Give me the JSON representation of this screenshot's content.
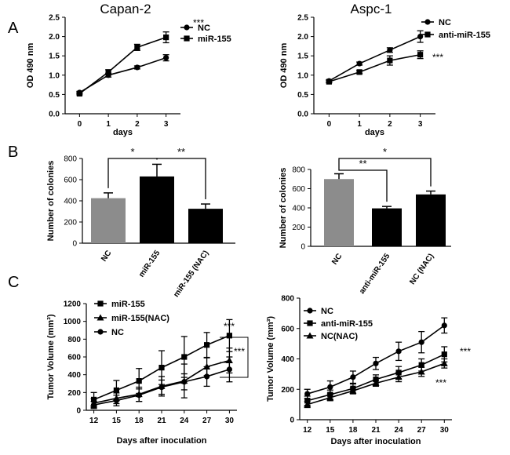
{
  "panel_labels": [
    "A",
    "B",
    "C"
  ],
  "chart_data": [
    {
      "id": "capan2_growth",
      "type": "line",
      "title": "Capan-2",
      "xlabel": "days",
      "ylabel": "OD 490 nm",
      "x": [
        0,
        1,
        2,
        3
      ],
      "xlim": [
        -0.5,
        3.5
      ],
      "ylim": [
        0,
        2.5
      ],
      "xticks": [
        "0",
        "1",
        "2",
        "3"
      ],
      "yticks": [
        "0.0",
        "0.5",
        "1.0",
        "1.5",
        "2.0",
        "2.5"
      ],
      "series": [
        {
          "name": "NC",
          "marker": "circle",
          "values": [
            0.55,
            1.0,
            1.2,
            1.45
          ],
          "errors": [
            0.03,
            0.05,
            0.04,
            0.08
          ]
        },
        {
          "name": "miR-155",
          "marker": "square",
          "values": [
            0.52,
            1.08,
            1.72,
            1.98
          ],
          "errors": [
            0.03,
            0.06,
            0.08,
            0.14
          ]
        }
      ],
      "annotations": [
        {
          "text": "***"
        }
      ],
      "legend": "top-right"
    },
    {
      "id": "aspc1_growth",
      "type": "line",
      "title": "Aspc-1",
      "xlabel": "days",
      "ylabel": "OD 490 nm",
      "x": [
        0,
        1,
        2,
        3
      ],
      "xlim": [
        -0.5,
        3.5
      ],
      "ylim": [
        0,
        2.5
      ],
      "xticks": [
        "0",
        "1",
        "2",
        "3"
      ],
      "yticks": [
        "0.0",
        "0.5",
        "1.0",
        "1.5",
        "2.0",
        "2.5"
      ],
      "series": [
        {
          "name": "NC",
          "marker": "circle",
          "values": [
            0.85,
            1.3,
            1.65,
            2.0
          ],
          "errors": [
            0.03,
            0.04,
            0.06,
            0.15
          ]
        },
        {
          "name": "anti-miR-155",
          "marker": "square",
          "values": [
            0.83,
            1.08,
            1.38,
            1.53
          ],
          "errors": [
            0.03,
            0.04,
            0.12,
            0.1
          ]
        }
      ],
      "annotations": [
        {
          "text": "***"
        }
      ],
      "legend": "top-right"
    },
    {
      "id": "capan2_colonies",
      "type": "bar",
      "ylabel": "Number of colonies",
      "categories": [
        "NC",
        "miR-155",
        "miR-155 (NAC)"
      ],
      "values": [
        425,
        630,
        325
      ],
      "errors": [
        50,
        115,
        45
      ],
      "colors": [
        "#8c8c8c",
        "#000000",
        "#000000"
      ],
      "ylim": [
        0,
        800
      ],
      "yticks": [
        "0",
        "200",
        "400",
        "600",
        "800"
      ],
      "significance": [
        {
          "from": 0,
          "to": 1,
          "text": "*"
        },
        {
          "from": 1,
          "to": 2,
          "text": "**"
        }
      ]
    },
    {
      "id": "aspc1_colonies",
      "type": "bar",
      "ylabel": "Number of colonies",
      "categories": [
        "NC",
        "anti-miR-155",
        "NC (NAC)"
      ],
      "values": [
        700,
        395,
        540
      ],
      "errors": [
        55,
        20,
        35
      ],
      "colors": [
        "#8c8c8c",
        "#000000",
        "#000000"
      ],
      "ylim": [
        0,
        800
      ],
      "yticks": [
        "0",
        "200",
        "400",
        "600",
        "800"
      ],
      "significance": [
        {
          "from": 0,
          "to": 1,
          "text": "**"
        },
        {
          "from": 0,
          "to": 2,
          "text": "*"
        }
      ]
    },
    {
      "id": "capan2_tumor",
      "type": "line",
      "xlabel": "Days after inoculation",
      "ylabel": "Tumor Volume (mm³)",
      "x": [
        12,
        15,
        18,
        21,
        24,
        27,
        30
      ],
      "xlim": [
        11,
        31
      ],
      "ylim": [
        0,
        1200
      ],
      "xticks": [
        "12",
        "15",
        "18",
        "21",
        "24",
        "27",
        "30"
      ],
      "yticks": [
        "0",
        "200",
        "400",
        "600",
        "800",
        "1000",
        "1200"
      ],
      "series": [
        {
          "name": "miR-155",
          "marker": "square",
          "values": [
            120,
            225,
            330,
            480,
            600,
            735,
            840
          ],
          "errors": [
            80,
            110,
            140,
            190,
            230,
            140,
            180
          ]
        },
        {
          "name": "miR-155(NAC)",
          "marker": "triangle",
          "values": [
            80,
            135,
            180,
            270,
            330,
            490,
            560
          ],
          "errors": [
            50,
            60,
            80,
            110,
            190,
            100,
            140
          ]
        },
        {
          "name": "NC",
          "marker": "circle",
          "values": [
            60,
            110,
            170,
            260,
            320,
            380,
            460
          ],
          "errors": [
            40,
            60,
            70,
            80,
            90,
            110,
            140
          ]
        }
      ],
      "annotations": [
        {
          "text": "***"
        },
        {
          "text": "***"
        }
      ],
      "legend": "top-left"
    },
    {
      "id": "aspc1_tumor",
      "type": "line",
      "xlabel": "Days after inoculation",
      "ylabel": "Tumor Volume (mm³)",
      "x": [
        12,
        15,
        18,
        21,
        24,
        27,
        30
      ],
      "xlim": [
        11,
        31
      ],
      "ylim": [
        0,
        800
      ],
      "xticks": [
        "12",
        "15",
        "18",
        "21",
        "24",
        "27",
        "30"
      ],
      "yticks": [
        "0",
        "200",
        "400",
        "600",
        "800"
      ],
      "series": [
        {
          "name": "NC",
          "marker": "circle",
          "values": [
            170,
            215,
            280,
            370,
            450,
            510,
            620
          ],
          "errors": [
            30,
            40,
            40,
            40,
            60,
            70,
            50
          ]
        },
        {
          "name": "anti-miR-155",
          "marker": "square",
          "values": [
            125,
            165,
            205,
            265,
            310,
            360,
            430
          ],
          "errors": [
            30,
            30,
            30,
            30,
            40,
            40,
            50
          ]
        },
        {
          "name": "NC(NAC)",
          "marker": "triangle",
          "values": [
            100,
            145,
            190,
            240,
            280,
            315,
            370
          ],
          "errors": [
            20,
            20,
            20,
            20,
            30,
            30,
            30
          ]
        }
      ],
      "annotations": [
        {
          "text": "***"
        },
        {
          "text": "***"
        }
      ],
      "legend": "top-left"
    }
  ]
}
